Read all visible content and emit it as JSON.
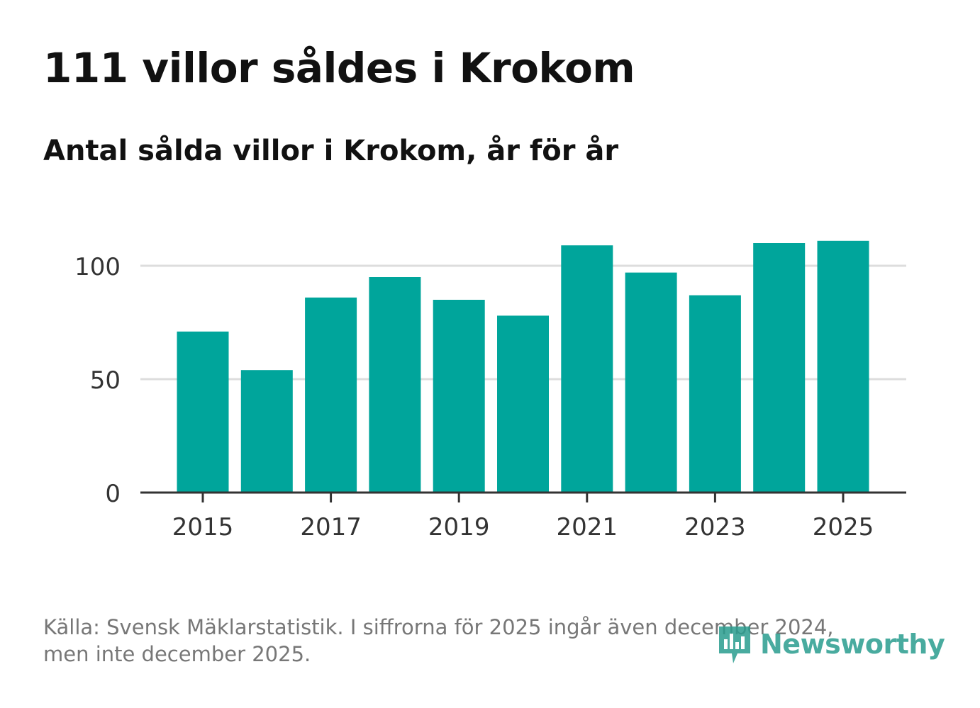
{
  "header": {
    "title": "111 villor såldes i Krokom",
    "subtitle": "Antal sålda villor i Krokom, år för år"
  },
  "footer": {
    "source_line1": "Källa: Svensk Mäklarstatistik. I siffrorna för 2025 ingår även december 2024,",
    "source_line2": "men inte december 2025."
  },
  "logo": {
    "text": "Newsworthy",
    "icon": "newsworthy-chart-bubble-icon",
    "color": "#2a9d8f"
  },
  "chart_data": {
    "type": "bar",
    "categories": [
      "2015",
      "2016",
      "2017",
      "2018",
      "2019",
      "2020",
      "2021",
      "2022",
      "2023",
      "2024",
      "2025"
    ],
    "values": [
      71,
      54,
      86,
      95,
      85,
      78,
      109,
      97,
      87,
      110,
      111
    ],
    "x_tick_labels": [
      "2015",
      "2017",
      "2019",
      "2021",
      "2023",
      "2025"
    ],
    "y_ticks": [
      0,
      50,
      100
    ],
    "ylim": [
      0,
      120
    ],
    "grid": true,
    "bar_color": "#00a59b",
    "grid_color": "#dddddd",
    "axis_color": "#333333"
  }
}
